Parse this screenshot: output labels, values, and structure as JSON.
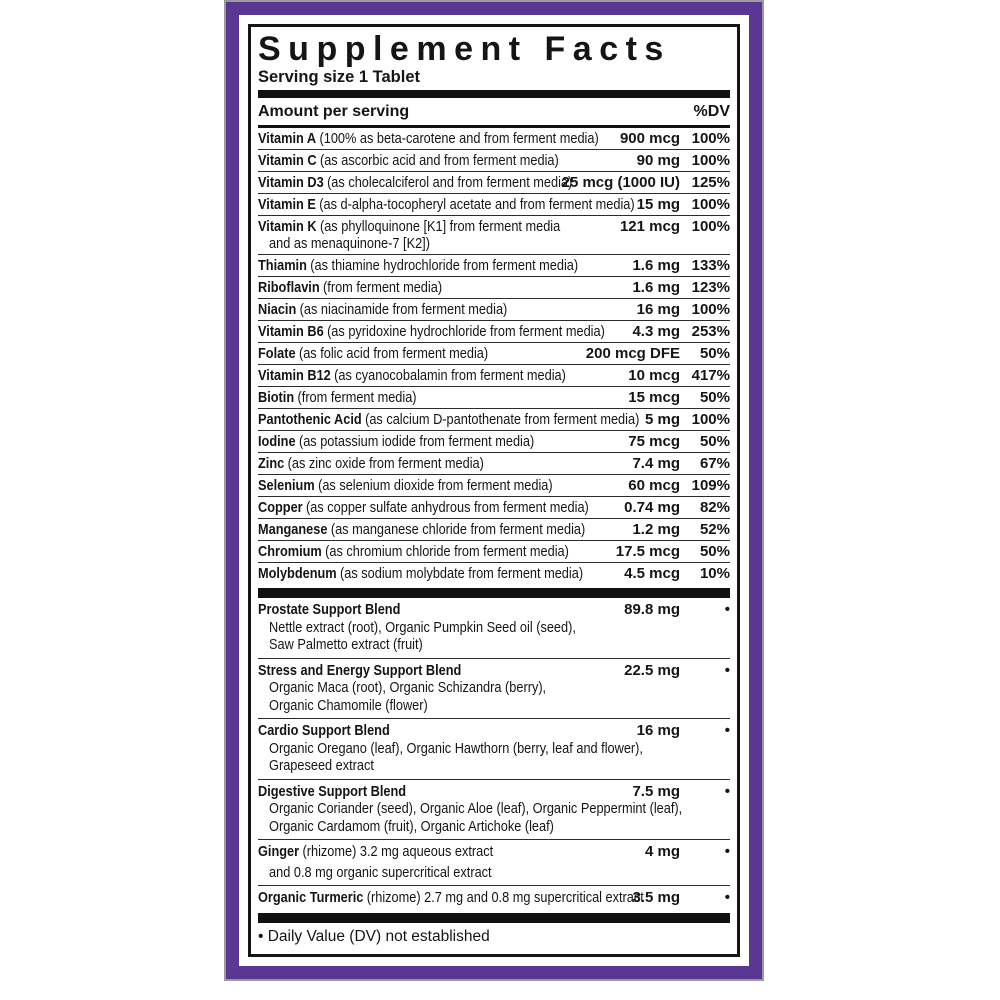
{
  "label": {
    "title": "Supplement Facts",
    "serving": "Serving size 1 Tablet",
    "header": {
      "left": "Amount per serving",
      "right": "%DV"
    },
    "nutrients": [
      {
        "name": "Vitamin A",
        "desc": "(100% as beta-carotene and from ferment media)",
        "amount": "900 mcg",
        "dv": "100%"
      },
      {
        "name": "Vitamin C",
        "desc": "(as ascorbic acid and from ferment media)",
        "amount": "90 mg",
        "dv": "100%"
      },
      {
        "name": "Vitamin D3",
        "desc": "(as cholecalciferol and from ferment media)",
        "amount": "25 mcg (1000 IU)",
        "dv": "125%"
      },
      {
        "name": "Vitamin E",
        "desc": "(as d-alpha-tocopheryl acetate and from ferment media)",
        "amount": "15 mg",
        "dv": "100%"
      },
      {
        "name": "Vitamin K",
        "desc": "(as phylloquinone [K1] from ferment media",
        "line2": "and as menaquinone-7 [K2])",
        "amount": "121 mcg",
        "dv": "100%"
      },
      {
        "name": "Thiamin",
        "desc": "(as thiamine hydrochloride from ferment media)",
        "amount": "1.6 mg",
        "dv": "133%"
      },
      {
        "name": "Riboflavin",
        "desc": "(from ferment media)",
        "amount": "1.6 mg",
        "dv": "123%"
      },
      {
        "name": "Niacin",
        "desc": "(as niacinamide from ferment media)",
        "amount": "16 mg",
        "dv": "100%"
      },
      {
        "name": "Vitamin B6",
        "desc": "(as pyridoxine hydrochloride from ferment media)",
        "amount": "4.3 mg",
        "dv": "253%"
      },
      {
        "name": "Folate",
        "desc": "(as folic acid from ferment media)",
        "amount": "200 mcg DFE",
        "dv": "50%"
      },
      {
        "name": "Vitamin B12",
        "desc": "(as cyanocobalamin from ferment media)",
        "amount": "10 mcg",
        "dv": "417%"
      },
      {
        "name": "Biotin",
        "desc": "(from ferment media)",
        "amount": "15 mcg",
        "dv": "50%"
      },
      {
        "name": "Pantothenic Acid",
        "desc": "(as calcium D-pantothenate from ferment media)",
        "amount": "5 mg",
        "dv": "100%"
      },
      {
        "name": "Iodine",
        "desc": "(as potassium iodide from ferment media)",
        "amount": "75 mcg",
        "dv": "50%"
      },
      {
        "name": "Zinc",
        "desc": "(as zinc oxide from ferment media)",
        "amount": "7.4 mg",
        "dv": "67%"
      },
      {
        "name": "Selenium",
        "desc": "(as selenium dioxide from ferment media)",
        "amount": "60 mcg",
        "dv": "109%"
      },
      {
        "name": "Copper",
        "desc": "(as copper sulfate anhydrous from ferment media)",
        "amount": "0.74 mg",
        "dv": "82%"
      },
      {
        "name": "Manganese",
        "desc": "(as manganese chloride from ferment media)",
        "amount": "1.2 mg",
        "dv": "52%"
      },
      {
        "name": "Chromium",
        "desc": "(as chromium chloride from ferment media)",
        "amount": "17.5 mcg",
        "dv": "50%"
      },
      {
        "name": "Molybdenum",
        "desc": "(as sodium molybdate from ferment media)",
        "amount": "4.5 mcg",
        "dv": "10%"
      }
    ],
    "blends": [
      {
        "name": "Prostate Support Blend",
        "amount": "89.8 mg",
        "dv": "•",
        "ingredients": [
          "Nettle extract (root), Organic Pumpkin Seed oil (seed),",
          "Saw Palmetto extract (fruit)"
        ]
      },
      {
        "name": "Stress and Energy Support Blend",
        "amount": "22.5 mg",
        "dv": "•",
        "ingredients": [
          "Organic Maca (root), Organic Schizandra (berry),",
          "Organic Chamomile (flower)"
        ]
      },
      {
        "name": "Cardio Support Blend",
        "amount": "16 mg",
        "dv": "•",
        "ingredients": [
          "Organic Oregano (leaf), Organic Hawthorn (berry, leaf and flower),",
          "Grapeseed extract"
        ]
      },
      {
        "name": "Digestive Support Blend",
        "amount": "7.5 mg",
        "dv": "•",
        "ingredients": [
          "Organic Coriander (seed), Organic Aloe (leaf), Organic Peppermint (leaf),",
          "Organic Cardamom (fruit), Organic Artichoke (leaf)"
        ]
      },
      {
        "name": "Ginger",
        "desc": "(rhizome) 3.2 mg aqueous extract",
        "line2": "and 0.8 mg organic supercritical extract",
        "amount": "4 mg",
        "dv": "•"
      },
      {
        "name": "Organic Turmeric",
        "desc": "(rhizome) 2.7 mg and 0.8 mg supercritical extract",
        "amount": "3.5 mg",
        "dv": "•"
      }
    ],
    "footnote": "• Daily Value (DV) not established",
    "colors": {
      "frame_purple": "#5b3794",
      "frame_outline_gray": "#9b9b9b",
      "rule_black": "#111111"
    }
  }
}
